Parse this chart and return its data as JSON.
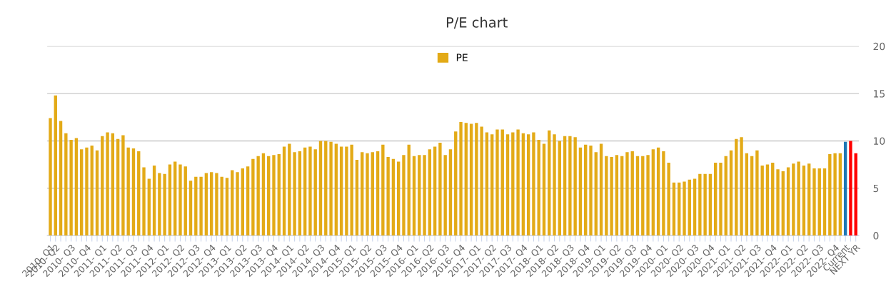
{
  "chart_data": {
    "type": "bar",
    "title": "P/E chart",
    "categories": [
      "2010- Q1",
      "2010- Q2",
      null,
      null,
      "2010- Q3",
      null,
      null,
      "2010- Q4",
      null,
      null,
      "2011- Q1",
      null,
      null,
      "2011- Q2",
      null,
      null,
      "2011- Q3",
      null,
      null,
      "2011- Q4",
      null,
      null,
      "2012- Q1",
      null,
      null,
      "2012- Q2",
      null,
      null,
      "2012- Q3",
      null,
      null,
      "2012- Q4",
      null,
      null,
      "2013- Q1",
      null,
      null,
      "2013- Q2",
      null,
      null,
      "2013- Q3",
      null,
      null,
      "2013- Q4",
      null,
      null,
      "2014- Q1",
      null,
      null,
      "2014- Q2",
      null,
      null,
      "2014- Q3",
      null,
      null,
      "2014- Q4",
      null,
      null,
      "2015- Q1",
      null,
      null,
      "2015- Q2",
      null,
      null,
      "2015- Q3",
      null,
      null,
      "2015- Q4",
      null,
      null,
      "2016- Q1",
      null,
      null,
      "2016- Q2",
      null,
      null,
      "2016- Q3",
      null,
      null,
      "2016- Q4",
      null,
      null,
      "2017- Q1",
      null,
      null,
      "2017- Q2",
      null,
      null,
      "2017- Q3",
      null,
      null,
      "2017- Q4",
      null,
      null,
      "2018- Q1",
      null,
      null,
      "2018- Q2",
      null,
      null,
      "2018- Q3",
      null,
      null,
      "2018- Q4",
      null,
      null,
      "2019- Q1",
      null,
      null,
      "2019- Q2",
      null,
      null,
      "2019- Q3",
      null,
      null,
      "2019- Q4",
      null,
      null,
      "2020- Q1",
      null,
      null,
      "2020- Q2",
      null,
      null,
      "2020- Q3",
      null,
      null,
      "2020- Q4",
      null,
      null,
      "2021- Q1",
      null,
      null,
      "2021- Q2",
      null,
      null,
      "2021- Q3",
      null,
      null,
      "2021- Q4",
      null,
      null,
      "2022- Q1",
      null,
      null,
      "2022- Q2",
      null,
      null,
      "2022- Q3",
      null,
      null,
      "2022- Q4",
      null,
      "Current",
      null,
      "NEXT YR"
    ],
    "series": [
      {
        "name": "PE",
        "color": "#e3aa17",
        "values": [
          12.4,
          14.8,
          12.1,
          10.8,
          10.1,
          10.3,
          9.1,
          9.3,
          9.5,
          9.0,
          10.5,
          10.9,
          10.8,
          10.2,
          10.6,
          9.3,
          9.2,
          8.9,
          7.2,
          6.0,
          7.4,
          6.6,
          6.5,
          7.5,
          7.8,
          7.5,
          7.3,
          5.8,
          6.2,
          6.2,
          6.6,
          6.7,
          6.6,
          6.2,
          6.1,
          6.9,
          6.7,
          7.1,
          7.3,
          8.1,
          8.4,
          8.7,
          8.4,
          8.5,
          8.6,
          9.4,
          9.7,
          8.8,
          8.9,
          9.3,
          9.4,
          9.1,
          10.0,
          10.0,
          9.9,
          9.7,
          9.4,
          9.4,
          9.6,
          8.0,
          8.8,
          8.7,
          8.8,
          8.9,
          9.6,
          8.3,
          8.1,
          7.8,
          8.5,
          9.6,
          8.4,
          8.5,
          8.5,
          9.1,
          9.4,
          9.8,
          8.5,
          9.1,
          11.0,
          12.0,
          11.9,
          11.8,
          11.9,
          11.5,
          10.9,
          10.7,
          11.2,
          11.2,
          10.7,
          10.9,
          11.2,
          10.8,
          10.7,
          10.9,
          10.1,
          9.7,
          11.1,
          10.7,
          10.0,
          10.5,
          10.5,
          10.4,
          9.3,
          9.6,
          9.5,
          8.8,
          9.7,
          8.4,
          8.3,
          8.5,
          8.4,
          8.8,
          8.9,
          8.4,
          8.4,
          8.5,
          9.1,
          9.3,
          8.9,
          7.7,
          5.6,
          5.6,
          5.7,
          5.9,
          6.0,
          6.5,
          6.5,
          6.5,
          7.7,
          7.7,
          8.4,
          9.0,
          10.2,
          10.4,
          8.7,
          8.4,
          9.0,
          7.4,
          7.5,
          7.7,
          7.0,
          6.8,
          7.2,
          7.6,
          7.8,
          7.4,
          7.6,
          7.1,
          7.1,
          7.1,
          8.6,
          8.7,
          8.7,
          9.9,
          10.0,
          8.7
        ],
        "colors": [
          "#e3aa17",
          "#e3aa17",
          "#e3aa17",
          "#e3aa17",
          "#e3aa17",
          "#e3aa17",
          "#e3aa17",
          "#e3aa17",
          "#e3aa17",
          "#e3aa17",
          "#e3aa17",
          "#e3aa17",
          "#e3aa17",
          "#e3aa17",
          "#e3aa17",
          "#e3aa17",
          "#e3aa17",
          "#e3aa17",
          "#e3aa17",
          "#e3aa17",
          "#e3aa17",
          "#e3aa17",
          "#e3aa17",
          "#e3aa17",
          "#e3aa17",
          "#e3aa17",
          "#e3aa17",
          "#e3aa17",
          "#e3aa17",
          "#e3aa17",
          "#e3aa17",
          "#e3aa17",
          "#e3aa17",
          "#e3aa17",
          "#e3aa17",
          "#e3aa17",
          "#e3aa17",
          "#e3aa17",
          "#e3aa17",
          "#e3aa17",
          "#e3aa17",
          "#e3aa17",
          "#e3aa17",
          "#e3aa17",
          "#e3aa17",
          "#e3aa17",
          "#e3aa17",
          "#e3aa17",
          "#e3aa17",
          "#e3aa17",
          "#e3aa17",
          "#e3aa17",
          "#e3aa17",
          "#e3aa17",
          "#e3aa17",
          "#e3aa17",
          "#e3aa17",
          "#e3aa17",
          "#e3aa17",
          "#e3aa17",
          "#e3aa17",
          "#e3aa17",
          "#e3aa17",
          "#e3aa17",
          "#e3aa17",
          "#e3aa17",
          "#e3aa17",
          "#e3aa17",
          "#e3aa17",
          "#e3aa17",
          "#e3aa17",
          "#e3aa17",
          "#e3aa17",
          "#e3aa17",
          "#e3aa17",
          "#e3aa17",
          "#e3aa17",
          "#e3aa17",
          "#e3aa17",
          "#e3aa17",
          "#e3aa17",
          "#e3aa17",
          "#e3aa17",
          "#e3aa17",
          "#e3aa17",
          "#e3aa17",
          "#e3aa17",
          "#e3aa17",
          "#e3aa17",
          "#e3aa17",
          "#e3aa17",
          "#e3aa17",
          "#e3aa17",
          "#e3aa17",
          "#e3aa17",
          "#e3aa17",
          "#e3aa17",
          "#e3aa17",
          "#e3aa17",
          "#e3aa17",
          "#e3aa17",
          "#e3aa17",
          "#e3aa17",
          "#e3aa17",
          "#e3aa17",
          "#e3aa17",
          "#e3aa17",
          "#e3aa17",
          "#e3aa17",
          "#e3aa17",
          "#e3aa17",
          "#e3aa17",
          "#e3aa17",
          "#e3aa17",
          "#e3aa17",
          "#e3aa17",
          "#e3aa17",
          "#e3aa17",
          "#e3aa17",
          "#e3aa17",
          "#e3aa17",
          "#e3aa17",
          "#e3aa17",
          "#e3aa17",
          "#e3aa17",
          "#e3aa17",
          "#e3aa17",
          "#e3aa17",
          "#e3aa17",
          "#e3aa17",
          "#e3aa17",
          "#e3aa17",
          "#e3aa17",
          "#e3aa17",
          "#e3aa17",
          "#e3aa17",
          "#e3aa17",
          "#e3aa17",
          "#e3aa17",
          "#e3aa17",
          "#e3aa17",
          "#e3aa17",
          "#e3aa17",
          "#e3aa17",
          "#e3aa17",
          "#e3aa17",
          "#e3aa17",
          "#e3aa17",
          "#e3aa17",
          "#e3aa17",
          "#e3aa17",
          "#e3aa17",
          "#e3aa17",
          "#1f77b4",
          "#ff0000",
          "#ff0000"
        ]
      }
    ],
    "ylim": [
      0,
      20
    ],
    "yticks": [
      0,
      5,
      10,
      15,
      20
    ],
    "grid": "y",
    "legend": "top"
  }
}
